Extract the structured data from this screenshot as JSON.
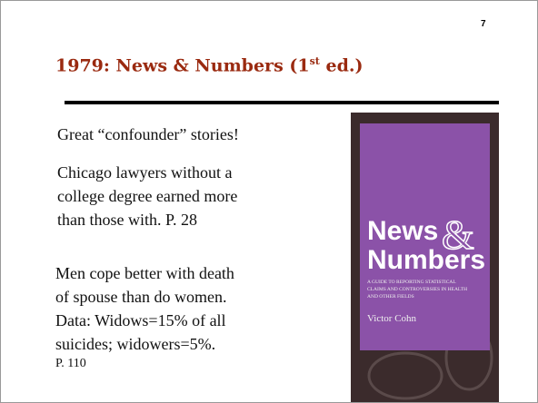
{
  "page_number": "7",
  "title": {
    "main": "1979: News & Numbers (1",
    "sup": "st",
    "end": " ed.)"
  },
  "paragraphs": [
    {
      "lines": [
        "Great “confounder” stories!"
      ]
    },
    {
      "lines": [
        "Chicago lawyers without a",
        "college degree earned more",
        "than those with.  P. 28"
      ]
    },
    {
      "lines": [
        "Men cope better with death",
        "of spouse than do women.",
        "Data: Widows=15% of all",
        "suicides; widowers=5%."
      ],
      "page_ref": "P. 110"
    }
  ],
  "book": {
    "title_line1": "News",
    "ampersand": "&",
    "title_line2": "Numbers",
    "subtitle_lines": [
      "A GUIDE TO REPORTING STATISTICAL",
      "CLAIMS AND CONTROVERSIES IN HEALTH",
      "AND OTHER FIELDS"
    ],
    "author": "Victor Cohn"
  }
}
